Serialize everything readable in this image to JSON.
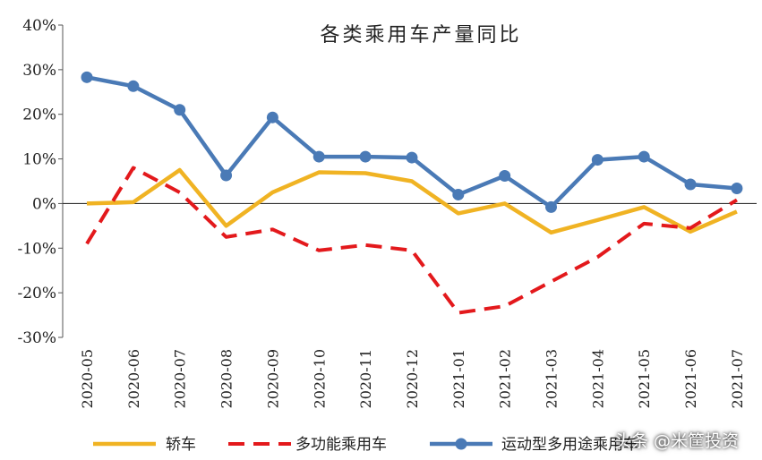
{
  "chart_data": {
    "type": "line",
    "title": "各类乘用车产量同比",
    "categories": [
      "2020-05",
      "2020-06",
      "2020-07",
      "2020-08",
      "2020-09",
      "2020-10",
      "2020-11",
      "2020-12",
      "2021-01",
      "2021-02",
      "2021-03",
      "2021-04",
      "2021-05",
      "2021-06",
      "2021-07"
    ],
    "ylim": [
      -30,
      40
    ],
    "yticks": [
      -30,
      -20,
      -10,
      0,
      10,
      20,
      30,
      40
    ],
    "ytick_labels": [
      "-30%",
      "-20%",
      "-10%",
      "0%",
      "10%",
      "20%",
      "30%",
      "40%"
    ],
    "series": [
      {
        "name": "轿车",
        "color": "#f0b323",
        "style": "solid",
        "marker": "none",
        "values": [
          0,
          0.3,
          7.5,
          -5,
          2.5,
          7,
          6.8,
          5,
          -2.2,
          0,
          -6.5,
          -3.7,
          -0.8,
          -6.3,
          -1.8
        ]
      },
      {
        "name": "多功能乘用车",
        "color": "#e3191c",
        "style": "dashed",
        "marker": "none",
        "values": [
          -9,
          8,
          2.5,
          -7.5,
          -5.8,
          -10.5,
          -9.3,
          -10.5,
          -24.5,
          -23,
          -17.5,
          -12,
          -4.5,
          -5.5,
          0.8
        ]
      },
      {
        "name": "运动型多用途乘用车",
        "color": "#4a7ab6",
        "style": "solid",
        "marker": "circle",
        "values": [
          28.3,
          26.3,
          21,
          6.3,
          19.3,
          10.5,
          10.5,
          10.3,
          2,
          6.2,
          -0.8,
          9.8,
          10.5,
          4.3,
          3.4
        ]
      }
    ],
    "legend_position": "bottom",
    "grid": false
  },
  "watermark": "头条 @米筐投资"
}
